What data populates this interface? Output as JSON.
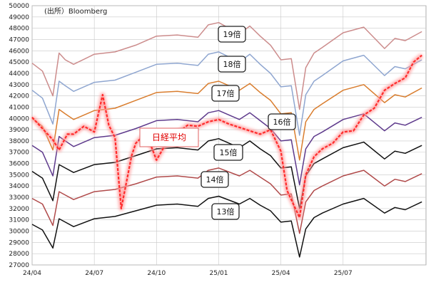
{
  "source": "(出所）Bloomberg",
  "chart_data": {
    "type": "line",
    "ylim": [
      27000,
      50000
    ],
    "yticks": [
      27000,
      28000,
      29000,
      30000,
      31000,
      32000,
      33000,
      34000,
      35000,
      36000,
      37000,
      38000,
      39000,
      40000,
      41000,
      42000,
      43000,
      44000,
      45000,
      46000,
      47000,
      48000,
      49000,
      50000
    ],
    "ytick_labels": [
      "27000",
      "28000",
      "29000",
      "30000",
      "31000",
      "32000",
      "33000",
      "34000",
      "35000",
      "36000",
      "37000",
      "38000",
      "39000",
      "40000",
      "41000",
      "42000",
      "43000",
      "44000",
      "45000",
      "46000",
      "47000",
      "48000",
      "49000",
      "50000"
    ],
    "xlim": [
      0,
      19
    ],
    "xticks": [
      0,
      3,
      6,
      9,
      12,
      15
    ],
    "xtick_labels": [
      "24/04",
      "24/07",
      "24/10",
      "25/01",
      "25/04",
      "25/07"
    ],
    "grid": true,
    "series": [
      {
        "name": "19倍",
        "color": "#cc8c8c",
        "style": "solid",
        "x": [
          0,
          0.5,
          1,
          1.3,
          1.6,
          2,
          3,
          4,
          5,
          6,
          7,
          8,
          8.5,
          9,
          10,
          10.5,
          11,
          11.5,
          12,
          12.5,
          12.9,
          13.2,
          13.6,
          14,
          15,
          16,
          17,
          17.5,
          18,
          18.8
        ],
        "values": [
          44900,
          44200,
          42000,
          45800,
          45200,
          44800,
          45700,
          45900,
          46500,
          47300,
          47400,
          47200,
          48300,
          48500,
          47500,
          48200,
          47300,
          46500,
          45200,
          45300,
          40800,
          44500,
          45800,
          46300,
          47600,
          48100,
          46200,
          47100,
          46900,
          47700
        ]
      },
      {
        "name": "18倍",
        "color": "#8fa6d0",
        "style": "solid",
        "x": [
          0,
          0.5,
          1,
          1.3,
          1.6,
          2,
          3,
          4,
          5,
          6,
          7,
          8,
          8.5,
          9,
          10,
          10.5,
          11,
          11.5,
          12,
          12.5,
          12.9,
          13.2,
          13.6,
          14,
          15,
          16,
          17,
          17.5,
          18,
          18.8
        ],
        "values": [
          42500,
          41800,
          39500,
          43300,
          42900,
          42400,
          43200,
          43400,
          44100,
          44800,
          44900,
          44700,
          45700,
          45900,
          45000,
          45700,
          44800,
          44000,
          42800,
          42900,
          38500,
          42100,
          43300,
          43800,
          45100,
          45600,
          43800,
          44600,
          44400,
          45200
        ]
      },
      {
        "name": "17倍",
        "color": "#d97d2e",
        "style": "solid",
        "x": [
          0,
          0.5,
          1,
          1.3,
          1.6,
          2,
          3,
          4,
          5,
          6,
          7,
          8,
          8.5,
          9,
          10,
          10.5,
          11,
          11.5,
          12,
          12.5,
          12.9,
          13.2,
          13.6,
          14,
          15,
          16,
          17,
          17.5,
          18,
          18.8
        ],
        "values": [
          40000,
          39300,
          37200,
          40800,
          40400,
          39900,
          40700,
          40900,
          41600,
          42300,
          42400,
          42200,
          43100,
          43300,
          42500,
          43100,
          42300,
          41600,
          40400,
          40500,
          36300,
          39700,
          40800,
          41300,
          42500,
          43000,
          41400,
          42100,
          41900,
          42700
        ]
      },
      {
        "name": "16倍",
        "color": "#5e3a8c",
        "style": "solid",
        "x": [
          0,
          0.5,
          1,
          1.3,
          1.6,
          2,
          3,
          4,
          5,
          6,
          7,
          8,
          8.5,
          9,
          10,
          10.5,
          11,
          11.5,
          12,
          12.5,
          12.9,
          13.2,
          13.6,
          14,
          15,
          16,
          17,
          17.5,
          18,
          18.8
        ],
        "values": [
          37600,
          37000,
          34900,
          38400,
          38000,
          37500,
          38300,
          38500,
          39100,
          39800,
          39900,
          39700,
          40500,
          40700,
          39900,
          40500,
          39800,
          39100,
          38000,
          38100,
          34100,
          37300,
          38400,
          38800,
          39900,
          40400,
          38900,
          39600,
          39400,
          40100
        ]
      },
      {
        "name": "15倍",
        "color": "#111111",
        "style": "solid",
        "x": [
          0,
          0.5,
          1,
          1.3,
          1.6,
          2,
          3,
          4,
          5,
          6,
          7,
          8,
          8.5,
          9,
          10,
          10.5,
          11,
          11.5,
          12,
          12.5,
          12.9,
          13.2,
          13.6,
          14,
          15,
          16,
          17,
          17.5,
          18,
          18.8
        ],
        "values": [
          35300,
          34700,
          32700,
          35900,
          35600,
          35200,
          35900,
          36100,
          36700,
          37300,
          37400,
          37200,
          38000,
          38200,
          37400,
          38000,
          37300,
          36700,
          35600,
          35700,
          32000,
          34900,
          36000,
          36400,
          37400,
          37900,
          36400,
          37100,
          36900,
          37600
        ]
      },
      {
        "name": "14倍",
        "color": "#b04a4a",
        "style": "solid",
        "x": [
          0,
          0.5,
          1,
          1.3,
          1.6,
          2,
          3,
          4,
          5,
          6,
          7,
          8,
          8.5,
          9,
          10,
          10.5,
          11,
          11.5,
          12,
          12.5,
          12.9,
          13.2,
          13.6,
          14,
          15,
          16,
          17,
          17.5,
          18,
          18.8
        ],
        "values": [
          32900,
          32400,
          30500,
          33500,
          33200,
          32800,
          33500,
          33700,
          34200,
          34800,
          34900,
          34700,
          35400,
          35600,
          34900,
          35400,
          34800,
          34200,
          33200,
          33300,
          29800,
          32600,
          33600,
          34000,
          34900,
          35400,
          34000,
          34600,
          34400,
          35100
        ]
      },
      {
        "name": "13倍",
        "color": "#111111",
        "style": "solid",
        "x": [
          0,
          0.5,
          1,
          1.3,
          1.6,
          2,
          3,
          4,
          5,
          6,
          7,
          8,
          8.5,
          9,
          10,
          10.5,
          11,
          11.5,
          12,
          12.5,
          12.9,
          13.2,
          13.6,
          14,
          15,
          16,
          17,
          17.5,
          18,
          18.8
        ],
        "values": [
          30600,
          30100,
          28500,
          31100,
          30800,
          30400,
          31100,
          31300,
          31800,
          32300,
          32400,
          32200,
          32900,
          33100,
          32400,
          32900,
          32300,
          31800,
          30800,
          30900,
          27700,
          30200,
          31200,
          31600,
          32400,
          32900,
          31600,
          32100,
          31900,
          32600
        ]
      },
      {
        "name": "日経平均",
        "color": "#ff2b2b",
        "style": "dashed-glow",
        "x": [
          0,
          0.5,
          1,
          1.3,
          1.7,
          2,
          2.5,
          3,
          3.4,
          3.7,
          4.0,
          4.3,
          4.8,
          5,
          5.5,
          6,
          6.5,
          7,
          7.5,
          8,
          8.5,
          9,
          9.5,
          10,
          10.5,
          11,
          11.5,
          12,
          12.3,
          12.9,
          13.2,
          13.6,
          14,
          14.5,
          15,
          15.5,
          16,
          16.5,
          17,
          17.5,
          18,
          18.4,
          18.8
        ],
        "values": [
          40100,
          39100,
          38100,
          37200,
          38600,
          38600,
          39300,
          38800,
          42100,
          39400,
          38300,
          32000,
          36700,
          37800,
          38700,
          36300,
          37900,
          38700,
          39400,
          39300,
          39700,
          39900,
          39500,
          39200,
          38900,
          38600,
          39000,
          37100,
          33600,
          31200,
          35000,
          36600,
          37300,
          37800,
          38800,
          38900,
          40300,
          40900,
          42500,
          43100,
          43600,
          45000,
          45600
        ]
      }
    ],
    "annotations": [
      {
        "text": "19倍",
        "series": "19倍"
      },
      {
        "text": "18倍",
        "series": "18倍"
      },
      {
        "text": "17倍",
        "series": "17倍"
      },
      {
        "text": "16倍",
        "series": "16倍"
      },
      {
        "text": "15倍",
        "series": "15倍"
      },
      {
        "text": "14倍",
        "series": "14倍"
      },
      {
        "text": "13倍",
        "series": "13倍"
      },
      {
        "text": "日経平均",
        "series": "日経平均",
        "color": "#e00000"
      }
    ]
  }
}
